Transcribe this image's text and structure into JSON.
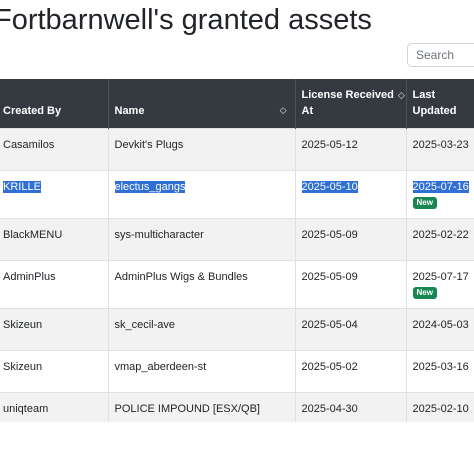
{
  "page": {
    "title": "Fortbarnwell's granted assets"
  },
  "search": {
    "placeholder": "Search"
  },
  "table": {
    "headers": {
      "created_by": "Created By",
      "name": "Name",
      "license_line1": "License Received",
      "license_line2": "At",
      "updated_line1": "Last",
      "updated_line2": "Updated"
    },
    "badge_label": "New",
    "rows": [
      {
        "created_by": "Casamilos",
        "name": "Devkit's Plugs",
        "license": "2025-05-12",
        "updated": "2025-03-23"
      },
      {
        "created_by": "KRILLE",
        "name": "electus_gangs",
        "license": "2025-05-10",
        "updated": "2025-07-16"
      },
      {
        "created_by": "BlackMENU",
        "name": "sys-multicharacter",
        "license": "2025-05-09",
        "updated": "2025-02-22"
      },
      {
        "created_by": "AdminPlus",
        "name": "AdminPlus Wigs & Bundles",
        "license": "2025-05-09",
        "updated": "2025-07-17"
      },
      {
        "created_by": "Skizeun",
        "name": "sk_cecil-ave",
        "license": "2025-05-04",
        "updated": "2024-05-03"
      },
      {
        "created_by": "Skizeun",
        "name": "vmap_aberdeen-st",
        "license": "2025-05-02",
        "updated": "2025-03-16"
      },
      {
        "created_by": "uniqteam",
        "name": "POLICE IMPOUND [ESX/QB]",
        "license": "2025-04-30",
        "updated": "2025-02-10"
      }
    ]
  },
  "icons": {
    "sort": "sort-icon"
  }
}
